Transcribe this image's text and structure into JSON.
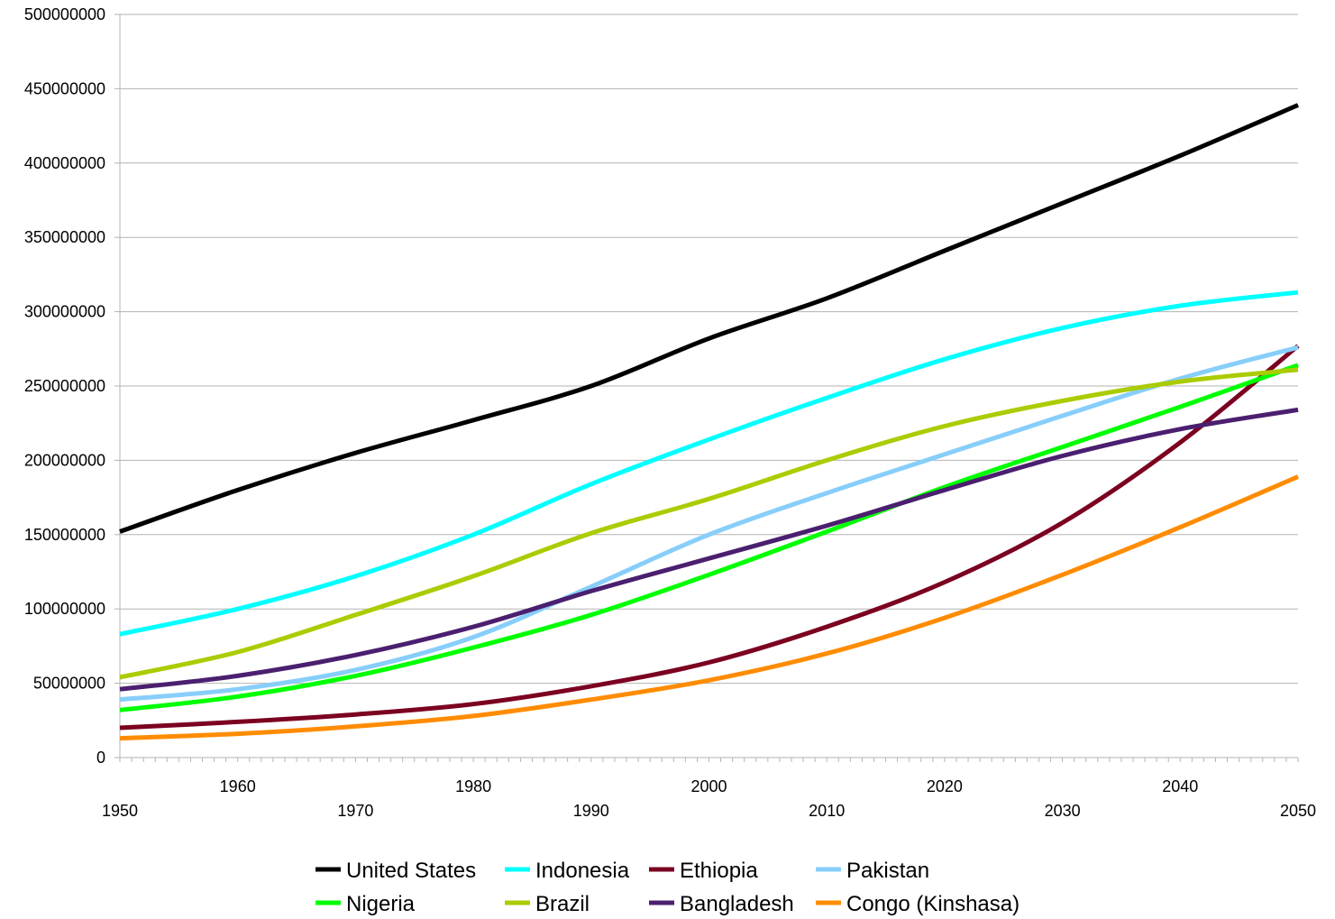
{
  "chart_data": {
    "type": "line",
    "title": "",
    "xlabel": "",
    "ylabel": "",
    "xlim": [
      1950,
      2050
    ],
    "ylim": [
      0,
      500000000
    ],
    "yticks": [
      0,
      50000000,
      100000000,
      150000000,
      200000000,
      250000000,
      300000000,
      350000000,
      400000000,
      450000000,
      500000000
    ],
    "ytick_labels": [
      "0",
      "50000000",
      "100000000",
      "150000000",
      "200000000",
      "250000000",
      "300000000",
      "350000000",
      "400000000",
      "450000000",
      "500000000"
    ],
    "xticks": [
      1950,
      1960,
      1970,
      1980,
      1990,
      2000,
      2010,
      2020,
      2030,
      2040,
      2050
    ],
    "xtick_labels": [
      "1950",
      "1960",
      "1970",
      "1980",
      "1990",
      "2000",
      "2010",
      "2020",
      "2030",
      "2040",
      "2050"
    ],
    "grid": "horizontal",
    "legend_position": "bottom",
    "x": [
      1950,
      1960,
      1970,
      1980,
      1990,
      2000,
      2010,
      2020,
      2030,
      2040,
      2050
    ],
    "series": [
      {
        "name": "United States",
        "color": "#000000",
        "values": [
          152000000,
          180000000,
          205000000,
          227000000,
          250000000,
          282000000,
          309000000,
          341000000,
          373000000,
          405000000,
          439000000
        ]
      },
      {
        "name": "Indonesia",
        "color": "#00ffff",
        "values": [
          83000000,
          100000000,
          122000000,
          150000000,
          184000000,
          214000000,
          242000000,
          268000000,
          289000000,
          304000000,
          313000000
        ]
      },
      {
        "name": "Ethiopia",
        "color": "#7b0020",
        "values": [
          20000000,
          24000000,
          29000000,
          36000000,
          48000000,
          64000000,
          88000000,
          118000000,
          158000000,
          212000000,
          277000000
        ]
      },
      {
        "name": "Pakistan",
        "color": "#87cefa",
        "values": [
          39000000,
          46000000,
          59000000,
          81000000,
          115000000,
          150000000,
          178000000,
          204000000,
          230000000,
          255000000,
          276000000
        ]
      },
      {
        "name": "Nigeria",
        "color": "#00ff00",
        "values": [
          32000000,
          41000000,
          55000000,
          74000000,
          96000000,
          123000000,
          152000000,
          182000000,
          209000000,
          236000000,
          264000000
        ]
      },
      {
        "name": "Brazil",
        "color": "#aacc00",
        "values": [
          54000000,
          71000000,
          96000000,
          122000000,
          151000000,
          174000000,
          200000000,
          223000000,
          240000000,
          253000000,
          261000000
        ]
      },
      {
        "name": "Bangladesh",
        "color": "#4b1f6f",
        "values": [
          46000000,
          55000000,
          69000000,
          88000000,
          112000000,
          134000000,
          156000000,
          180000000,
          203000000,
          221000000,
          234000000
        ]
      },
      {
        "name": "Congo (Kinshasa)",
        "color": "#ff8c00",
        "values": [
          13000000,
          16000000,
          21000000,
          28000000,
          39000000,
          52000000,
          70000000,
          94000000,
          123000000,
          155000000,
          189000000
        ]
      }
    ]
  }
}
